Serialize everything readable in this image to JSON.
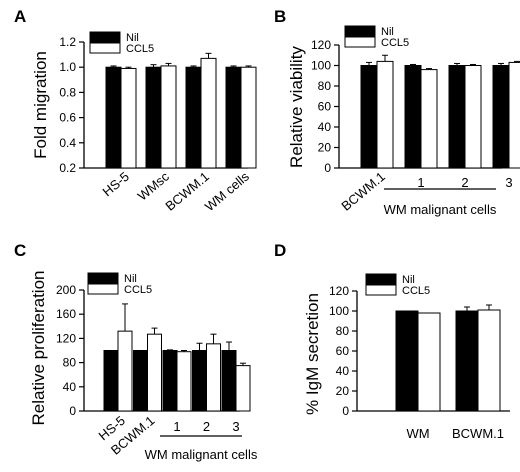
{
  "figure": {
    "title": ""
  },
  "chart_data": [
    {
      "panel": "A",
      "type": "bar",
      "ylabel": "Fold migration",
      "xlabel": "",
      "ylim": [
        0.2,
        1.2
      ],
      "yticks": [
        0.2,
        0.4,
        0.6,
        0.8,
        1.0,
        1.2
      ],
      "ytick_labels": [
        "0.2",
        "0.4",
        "0.6",
        "0.8",
        "1.0",
        "1.2"
      ],
      "categories": [
        "HS-5",
        "WMsc",
        "BCWM.1",
        "WM cells"
      ],
      "series": [
        {
          "name": "Nil",
          "color": "#000000",
          "values": [
            1.0,
            1.0,
            1.0,
            1.0
          ],
          "errors": [
            0.01,
            0.02,
            0.01,
            0.01
          ]
        },
        {
          "name": "CCL5",
          "color": "#ffffff",
          "values": [
            0.99,
            1.01,
            1.07,
            1.0
          ],
          "errors": [
            0.01,
            0.02,
            0.04,
            0.01
          ]
        }
      ],
      "legend": "top-left",
      "grid": false,
      "group_label": ""
    },
    {
      "panel": "B",
      "type": "bar",
      "ylabel": "Relative viability",
      "xlabel": "",
      "ylim": [
        0,
        120
      ],
      "yticks": [
        0,
        20,
        40,
        60,
        80,
        100,
        120
      ],
      "ytick_labels": [
        "0",
        "20",
        "40",
        "60",
        "80",
        "100",
        "120"
      ],
      "categories": [
        "BCWM.1",
        "1",
        "2",
        "3"
      ],
      "series": [
        {
          "name": "Nil",
          "color": "#000000",
          "values": [
            100,
            100,
            100,
            100
          ],
          "errors": [
            3,
            1,
            2,
            2
          ]
        },
        {
          "name": "CCL5",
          "color": "#ffffff",
          "values": [
            104,
            96,
            100,
            103
          ],
          "errors": [
            6,
            1,
            1,
            1
          ]
        }
      ],
      "legend": "top-left",
      "grid": false,
      "group_label": "WM malignant cells"
    },
    {
      "panel": "C",
      "type": "bar",
      "ylabel": "Relative proliferation",
      "xlabel": "",
      "ylim": [
        0,
        200
      ],
      "yticks": [
        0,
        40,
        80,
        120,
        160,
        200
      ],
      "ytick_labels": [
        "0",
        "40",
        "80",
        "120",
        "160",
        "200"
      ],
      "categories": [
        "HS-5",
        "BCWM.1",
        "1",
        "2",
        "3"
      ],
      "series": [
        {
          "name": "Nil",
          "color": "#000000",
          "values": [
            100,
            100,
            100,
            100,
            100
          ],
          "errors": [
            0,
            0,
            1,
            12,
            14
          ]
        },
        {
          "name": "CCL5",
          "color": "#ffffff",
          "values": [
            132,
            127,
            98,
            111,
            75
          ],
          "errors": [
            45,
            10,
            2,
            16,
            4
          ]
        }
      ],
      "legend": "top-left",
      "grid": false,
      "group_label": "WM malignant cells"
    },
    {
      "panel": "D",
      "type": "bar",
      "ylabel": "% IgM secretion",
      "xlabel": "",
      "ylim": [
        0,
        120
      ],
      "yticks": [
        0,
        20,
        40,
        60,
        80,
        100,
        120
      ],
      "ytick_labels": [
        "0",
        "20",
        "40",
        "60",
        "80",
        "100",
        "120"
      ],
      "categories": [
        "WM",
        "BCWM.1"
      ],
      "series": [
        {
          "name": "Nil",
          "color": "#000000",
          "values": [
            100,
            100
          ],
          "errors": [
            0,
            4
          ]
        },
        {
          "name": "CCL5",
          "color": "#ffffff",
          "values": [
            98,
            101
          ],
          "errors": [
            0,
            5
          ]
        }
      ],
      "legend": "top-left",
      "grid": false,
      "group_label": ""
    }
  ]
}
